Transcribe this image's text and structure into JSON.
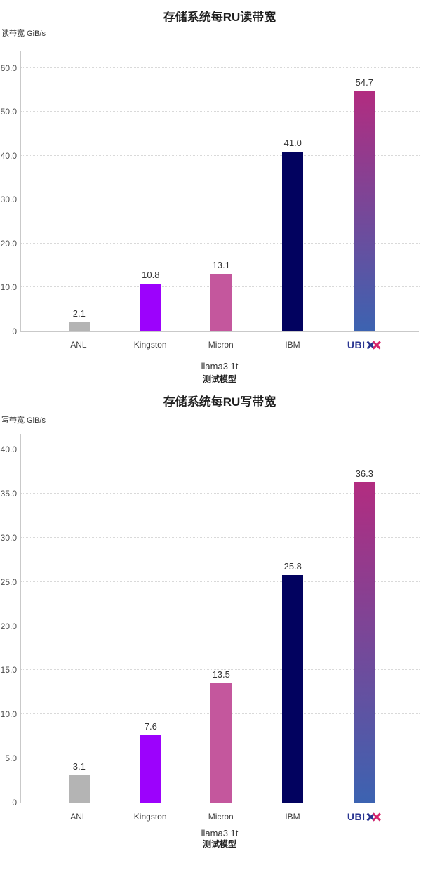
{
  "logo": {
    "prefix": "UBI",
    "navy": "#2a3591",
    "pink": "#d7246c"
  },
  "chart_data": [
    {
      "type": "bar",
      "title": "存储系统每RU读带宽",
      "ylabel": "读带宽 GiB/s",
      "xlabel": "测试模型",
      "group_label": "llama3 1t",
      "categories": [
        "ANL",
        "Kingston",
        "Micron",
        "IBM",
        "UBIX"
      ],
      "values": [
        2.1,
        10.8,
        13.1,
        41.0,
        54.7
      ],
      "data_labels": [
        "2.1",
        "10.8",
        "13.1",
        "41.0",
        "54.7"
      ],
      "ylim": [
        0,
        63.8
      ],
      "ytick_step": 10,
      "ytick_labels": [
        "0",
        "10.0",
        "20.0",
        "30.0",
        "40.0",
        "50.0",
        "60.0"
      ],
      "grid": "dotted-horizontal",
      "legend": "none",
      "logo_index": 4,
      "bar_colors": [
        "#b4b4b4",
        "#9c02fc",
        "#c4579d",
        "#02025f",
        {
          "top": "#b22c80",
          "bottom": "#3c63b1"
        }
      ]
    },
    {
      "type": "bar",
      "title": "存储系统每RU写带宽",
      "ylabel": "写带宽 GiB/s",
      "xlabel": "测试模型",
      "group_label": "llama3 1t",
      "categories": [
        "ANL",
        "Kingston",
        "Micron",
        "IBM",
        "UBIX"
      ],
      "values": [
        3.1,
        7.6,
        13.5,
        25.8,
        36.3
      ],
      "data_labels": [
        "3.1",
        "7.6",
        "13.5",
        "25.8",
        "36.3"
      ],
      "ylim": [
        0,
        41.75
      ],
      "ytick_step": 5,
      "ytick_labels": [
        "0",
        "5.0",
        "10.0",
        "15.0",
        "20.0",
        "25.0",
        "30.0",
        "35.0",
        "40.0"
      ],
      "grid": "dotted-horizontal",
      "legend": "none",
      "logo_index": 4,
      "bar_colors": [
        "#b4b4b4",
        "#9c02fc",
        "#c4579d",
        "#02025f",
        {
          "top": "#b22c80",
          "bottom": "#3c63b1"
        }
      ]
    }
  ]
}
